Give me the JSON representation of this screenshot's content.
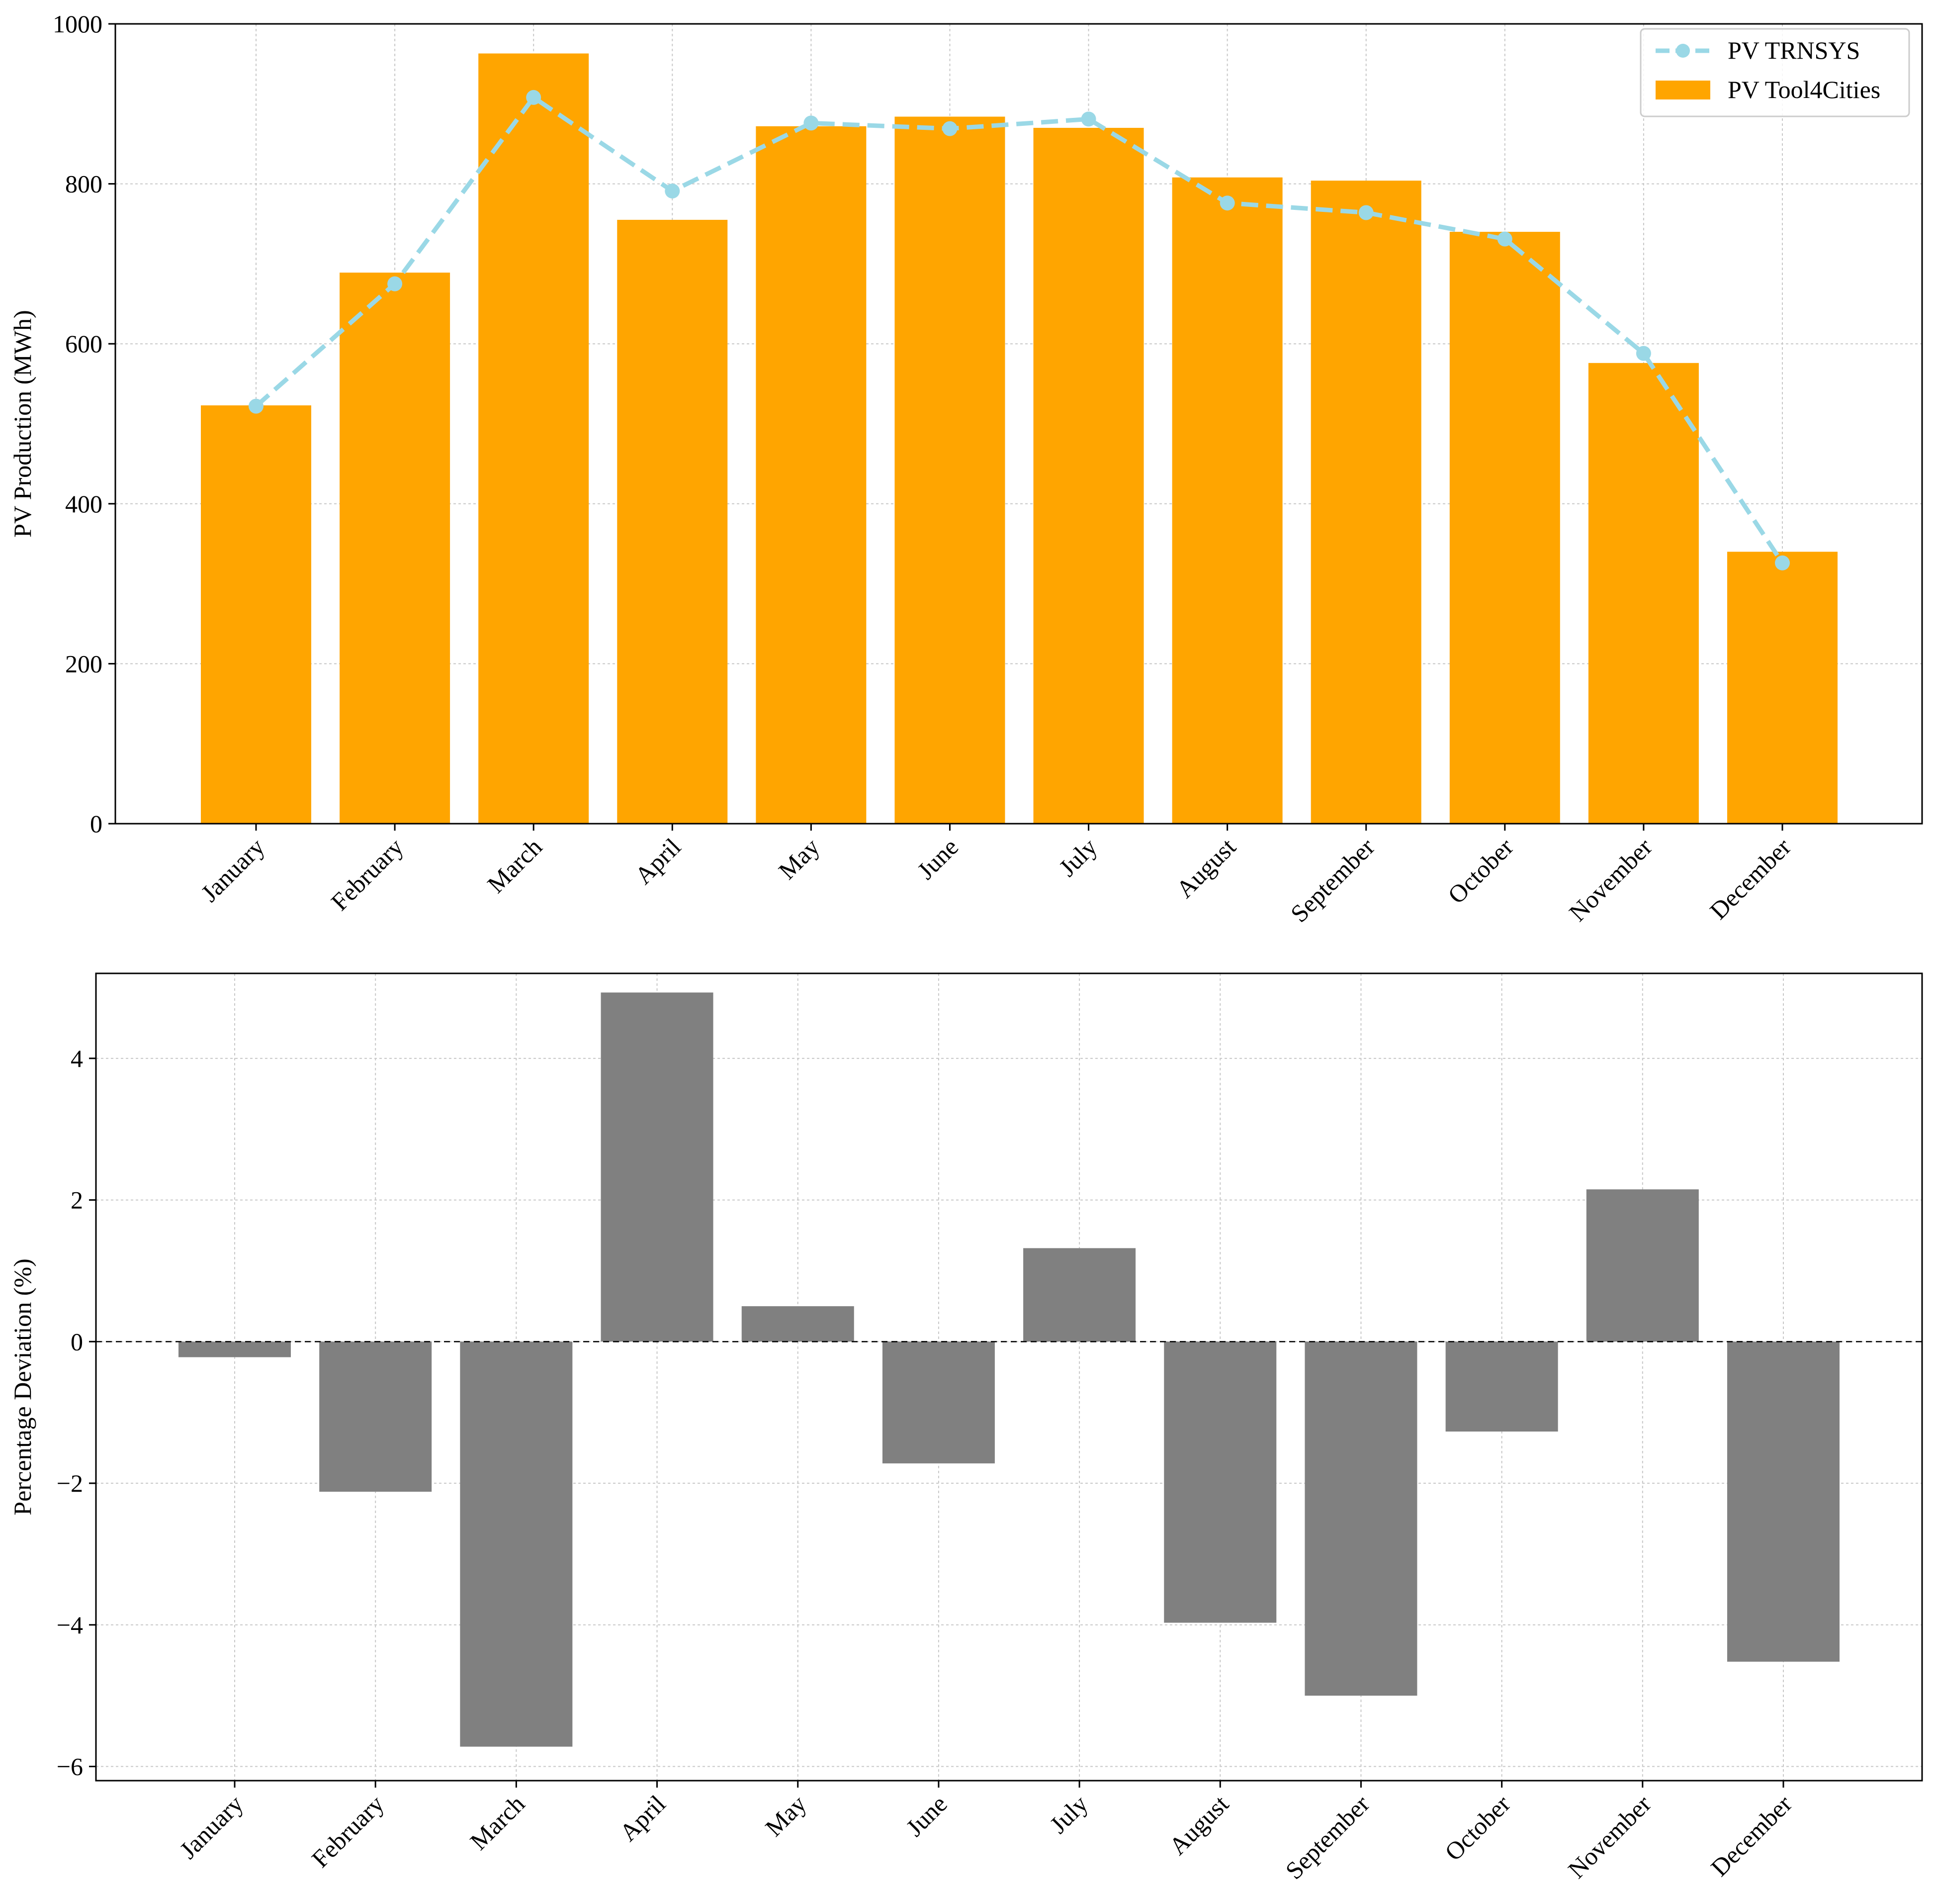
{
  "chart_data": [
    {
      "type": "bar",
      "ylabel": "PV Production (MWh)",
      "xlabel": "",
      "ylim": [
        0,
        1000
      ],
      "yticks": [
        0,
        200,
        400,
        600,
        800,
        1000
      ],
      "grid": true,
      "legend_location": "top-right",
      "categories": [
        "January",
        "February",
        "March",
        "April",
        "May",
        "June",
        "July",
        "August",
        "September",
        "October",
        "November",
        "December"
      ],
      "series": [
        {
          "name": "PV TRNSYS",
          "kind": "line",
          "style": "dashed",
          "marker": "circle",
          "color": "#9ad8e6",
          "values": [
            522,
            675,
            908,
            791,
            876,
            869,
            881,
            776,
            764,
            731,
            588,
            326
          ]
        },
        {
          "name": "PV Tool4Cities",
          "kind": "bar",
          "color": "#ffa500",
          "values": [
            523,
            689,
            963,
            755,
            872,
            884,
            870,
            808,
            804,
            740,
            576,
            340
          ]
        }
      ]
    },
    {
      "type": "bar",
      "ylabel": "Percentage Deviation (%)",
      "xlabel": "",
      "ylim": [
        -6.2,
        5.2
      ],
      "yticks": [
        -6,
        -4,
        -2,
        0,
        2,
        4
      ],
      "ytick_labels": [
        "−6",
        "−4",
        "−2",
        "0",
        "2",
        "4"
      ],
      "grid": true,
      "zero_line": true,
      "categories": [
        "January",
        "February",
        "March",
        "April",
        "May",
        "June",
        "July",
        "August",
        "September",
        "October",
        "November",
        "December"
      ],
      "series": [
        {
          "name": "Percentage Deviation",
          "color": "#808080",
          "values": [
            -0.22,
            -2.12,
            -5.72,
            4.93,
            0.5,
            -1.72,
            1.32,
            -3.97,
            -5.0,
            -1.27,
            2.15,
            -4.52
          ]
        }
      ]
    }
  ]
}
